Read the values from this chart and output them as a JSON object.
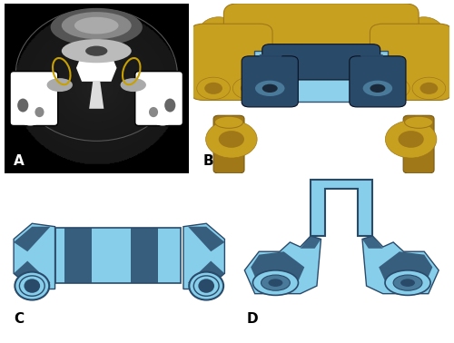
{
  "figure_bg": "#ffffff",
  "panel_labels": [
    "A",
    "B",
    "C",
    "D"
  ],
  "panel_label_fontsize": 11,
  "panel_label_color": "#000000",
  "panel_label_weight": "bold",
  "light_blue": "#87ceeb",
  "dark_blue": "#2a4a6a",
  "medium_blue": "#4a7a9a",
  "gold": "#c8a020",
  "gold_dark": "#a07818",
  "gold_shadow": "#7a5a10",
  "ct_bg": "#1a1a1a",
  "white": "#ffffff",
  "gray_light": "#cccccc",
  "gray_mid": "#888888",
  "gray_dark": "#444444",
  "yellow_ellipse": "#c8a000"
}
